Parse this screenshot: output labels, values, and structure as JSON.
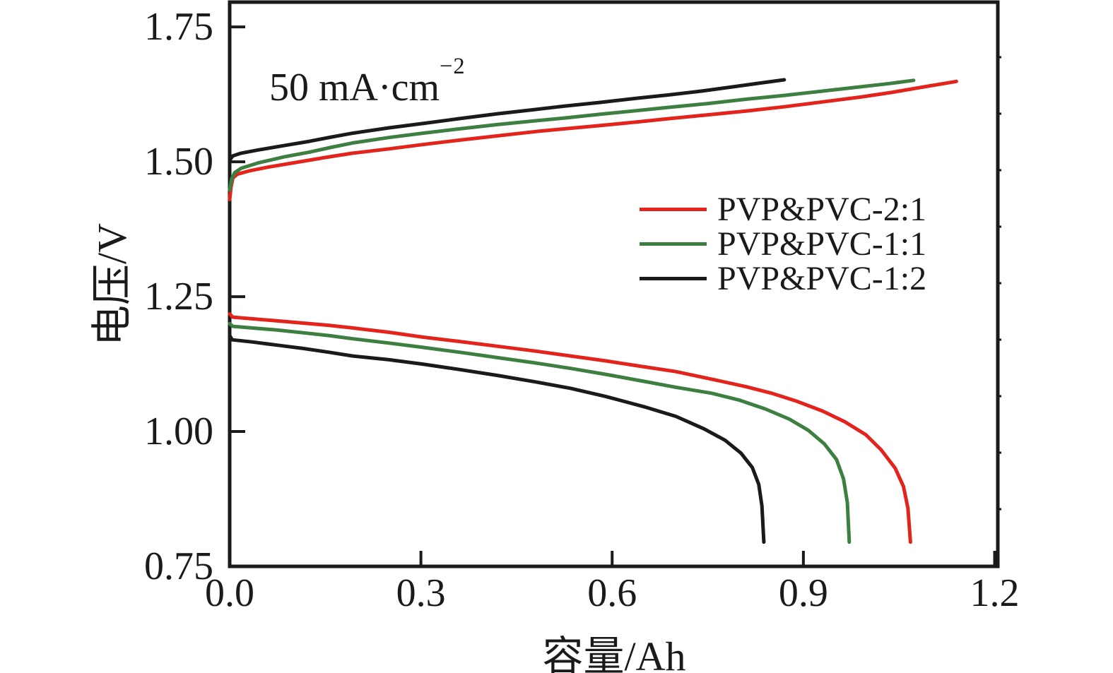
{
  "figure": {
    "background": "#ffffff"
  },
  "colors": {
    "axis": "#1a1a1a",
    "red": "#e2241c",
    "green": "#3c7f41",
    "black": "#1a1a1a"
  },
  "annotation": {
    "text": "50 mA·cm",
    "exponent": "−2"
  },
  "axes": {
    "x": {
      "label": "容量/Ah",
      "ticks": [
        "0.0",
        "0.3",
        "0.6",
        "0.9",
        "1.2"
      ],
      "tick_values": [
        0.0,
        0.3,
        0.6,
        0.9,
        1.2
      ]
    },
    "y": {
      "label": "电压/V",
      "ticks": [
        "1.75",
        "1.50",
        "1.25",
        "1.00",
        "0.75"
      ],
      "tick_values": [
        1.75,
        1.5,
        1.25,
        1.0,
        0.75
      ]
    }
  },
  "legend": {
    "entries": [
      {
        "label": "PVP&PVC-2:1",
        "color": "#e2241c"
      },
      {
        "label": "PVP&PVC-1:1",
        "color": "#3c7f41"
      },
      {
        "label": "PVP&PVC-1:2",
        "color": "#1a1a1a"
      }
    ]
  },
  "chart_data": {
    "type": "line",
    "title": "",
    "xlabel": "容量/Ah",
    "ylabel": "电压/V",
    "annotation": "50 mA·cm⁻²",
    "xlim": [
      0,
      1.205
    ],
    "ylim": [
      0.75,
      1.796
    ],
    "grid": false,
    "legend_position": "center-right",
    "series": [
      {
        "id": "pvp-pvc-2-1-charge",
        "name": "PVP&PVC-2:1 (charge)",
        "color": "#e2241c",
        "points": [
          [
            0.0,
            1.43
          ],
          [
            0.002,
            1.452
          ],
          [
            0.005,
            1.47
          ],
          [
            0.012,
            1.477
          ],
          [
            0.03,
            1.483
          ],
          [
            0.06,
            1.49
          ],
          [
            0.1,
            1.498
          ],
          [
            0.15,
            1.508
          ],
          [
            0.193,
            1.516
          ],
          [
            0.25,
            1.524
          ],
          [
            0.303,
            1.532
          ],
          [
            0.36,
            1.54
          ],
          [
            0.42,
            1.548
          ],
          [
            0.48,
            1.556
          ],
          [
            0.524,
            1.561
          ],
          [
            0.58,
            1.567
          ],
          [
            0.64,
            1.574
          ],
          [
            0.689,
            1.58
          ],
          [
            0.75,
            1.587
          ],
          [
            0.81,
            1.594
          ],
          [
            0.87,
            1.602
          ],
          [
            0.93,
            1.611
          ],
          [
            0.99,
            1.62
          ],
          [
            1.04,
            1.629
          ],
          [
            1.09,
            1.639
          ],
          [
            1.14,
            1.649
          ]
        ]
      },
      {
        "id": "pvp-pvc-1-1-charge",
        "name": "PVP&PVC-1:1 (charge)",
        "color": "#3c7f41",
        "points": [
          [
            0.0,
            1.448
          ],
          [
            0.003,
            1.468
          ],
          [
            0.008,
            1.48
          ],
          [
            0.018,
            1.488
          ],
          [
            0.045,
            1.498
          ],
          [
            0.085,
            1.509
          ],
          [
            0.125,
            1.518
          ],
          [
            0.16,
            1.527
          ],
          [
            0.193,
            1.535
          ],
          [
            0.25,
            1.545
          ],
          [
            0.303,
            1.553
          ],
          [
            0.36,
            1.561
          ],
          [
            0.42,
            1.569
          ],
          [
            0.48,
            1.576
          ],
          [
            0.524,
            1.581
          ],
          [
            0.58,
            1.588
          ],
          [
            0.64,
            1.595
          ],
          [
            0.689,
            1.601
          ],
          [
            0.75,
            1.608
          ],
          [
            0.81,
            1.616
          ],
          [
            0.87,
            1.623
          ],
          [
            0.93,
            1.631
          ],
          [
            0.99,
            1.639
          ],
          [
            1.035,
            1.645
          ],
          [
            1.073,
            1.651
          ]
        ]
      },
      {
        "id": "pvp-pvc-1-2-charge",
        "name": "PVP&PVC-1:2 (charge)",
        "color": "#1a1a1a",
        "points": [
          [
            0.0,
            1.503
          ],
          [
            0.005,
            1.511
          ],
          [
            0.018,
            1.516
          ],
          [
            0.045,
            1.522
          ],
          [
            0.085,
            1.53
          ],
          [
            0.125,
            1.538
          ],
          [
            0.16,
            1.546
          ],
          [
            0.193,
            1.553
          ],
          [
            0.25,
            1.563
          ],
          [
            0.303,
            1.571
          ],
          [
            0.36,
            1.58
          ],
          [
            0.42,
            1.589
          ],
          [
            0.48,
            1.597
          ],
          [
            0.524,
            1.603
          ],
          [
            0.58,
            1.61
          ],
          [
            0.64,
            1.618
          ],
          [
            0.689,
            1.624
          ],
          [
            0.74,
            1.631
          ],
          [
            0.79,
            1.639
          ],
          [
            0.832,
            1.646
          ],
          [
            0.87,
            1.652
          ]
        ]
      },
      {
        "id": "pvp-pvc-2-1-discharge",
        "name": "PVP&PVC-2:1 (discharge)",
        "color": "#e2241c",
        "points": [
          [
            0.0,
            1.218
          ],
          [
            0.005,
            1.212
          ],
          [
            0.035,
            1.209
          ],
          [
            0.075,
            1.205
          ],
          [
            0.115,
            1.201
          ],
          [
            0.155,
            1.197
          ],
          [
            0.193,
            1.192
          ],
          [
            0.25,
            1.184
          ],
          [
            0.303,
            1.175
          ],
          [
            0.36,
            1.167
          ],
          [
            0.42,
            1.158
          ],
          [
            0.48,
            1.149
          ],
          [
            0.535,
            1.14
          ],
          [
            0.59,
            1.131
          ],
          [
            0.65,
            1.12
          ],
          [
            0.7,
            1.111
          ],
          [
            0.756,
            1.097
          ],
          [
            0.81,
            1.083
          ],
          [
            0.85,
            1.071
          ],
          [
            0.89,
            1.056
          ],
          [
            0.93,
            1.038
          ],
          [
            0.965,
            1.018
          ],
          [
            0.998,
            0.994
          ],
          [
            1.022,
            0.966
          ],
          [
            1.044,
            0.932
          ],
          [
            1.057,
            0.898
          ],
          [
            1.064,
            0.858
          ],
          [
            1.068,
            0.795
          ]
        ]
      },
      {
        "id": "pvp-pvc-1-1-discharge",
        "name": "PVP&PVC-1:1 (discharge)",
        "color": "#3c7f41",
        "points": [
          [
            0.0,
            1.2
          ],
          [
            0.005,
            1.195
          ],
          [
            0.035,
            1.192
          ],
          [
            0.075,
            1.188
          ],
          [
            0.115,
            1.183
          ],
          [
            0.155,
            1.178
          ],
          [
            0.193,
            1.172
          ],
          [
            0.25,
            1.164
          ],
          [
            0.303,
            1.156
          ],
          [
            0.36,
            1.147
          ],
          [
            0.42,
            1.137
          ],
          [
            0.48,
            1.127
          ],
          [
            0.535,
            1.117
          ],
          [
            0.59,
            1.106
          ],
          [
            0.65,
            1.093
          ],
          [
            0.7,
            1.082
          ],
          [
            0.756,
            1.071
          ],
          [
            0.8,
            1.058
          ],
          [
            0.84,
            1.042
          ],
          [
            0.878,
            1.023
          ],
          [
            0.908,
            1.002
          ],
          [
            0.933,
            0.977
          ],
          [
            0.952,
            0.948
          ],
          [
            0.963,
            0.912
          ],
          [
            0.969,
            0.868
          ],
          [
            0.972,
            0.795
          ]
        ]
      },
      {
        "id": "pvp-pvc-1-2-discharge",
        "name": "PVP&PVC-1:2 (discharge)",
        "color": "#1a1a1a",
        "points": [
          [
            0.0,
            1.178
          ],
          [
            0.004,
            1.17
          ],
          [
            0.035,
            1.166
          ],
          [
            0.075,
            1.16
          ],
          [
            0.115,
            1.154
          ],
          [
            0.155,
            1.147
          ],
          [
            0.193,
            1.14
          ],
          [
            0.25,
            1.133
          ],
          [
            0.303,
            1.125
          ],
          [
            0.36,
            1.115
          ],
          [
            0.42,
            1.104
          ],
          [
            0.48,
            1.092
          ],
          [
            0.535,
            1.08
          ],
          [
            0.59,
            1.065
          ],
          [
            0.65,
            1.046
          ],
          [
            0.7,
            1.028
          ],
          [
            0.744,
            1.005
          ],
          [
            0.777,
            0.984
          ],
          [
            0.802,
            0.96
          ],
          [
            0.82,
            0.933
          ],
          [
            0.83,
            0.902
          ],
          [
            0.835,
            0.862
          ],
          [
            0.838,
            0.795
          ]
        ]
      }
    ]
  }
}
